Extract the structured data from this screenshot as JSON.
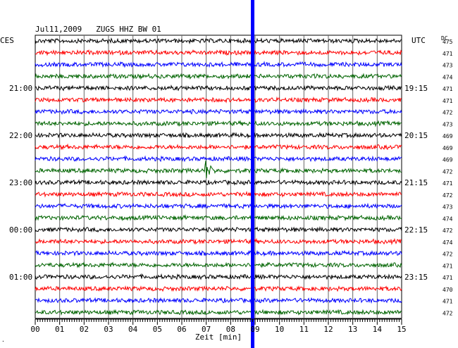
{
  "chart_data": {
    "type": "line",
    "title": "Jul11,2009   ZUGS HHZ BW 01",
    "left_label": "CES",
    "right_label": "UTC",
    "dc_label": "DC",
    "xlabel": "Zeit [min]",
    "xlim": [
      0,
      15
    ],
    "x_ticks": [
      "00",
      "01",
      "02",
      "03",
      "04",
      "05",
      "06",
      "07",
      "08",
      "09",
      "10",
      "11",
      "12",
      "13",
      "14",
      "15"
    ],
    "left_time_labels": [
      "21:00",
      "22:00",
      "23:00",
      "00:00",
      "01:00"
    ],
    "right_time_labels": [
      "19:15",
      "20:15",
      "21:15",
      "22:15",
      "23:15"
    ],
    "time_label_traces": [
      4,
      8,
      12,
      16,
      20
    ],
    "trace_colors": [
      "#000000",
      "#ff0000",
      "#0000ff",
      "#006400"
    ],
    "dc_values": [
      475,
      471,
      473,
      474,
      471,
      471,
      472,
      473,
      469,
      469,
      469,
      472,
      471,
      472,
      473,
      474,
      472,
      474,
      472,
      471,
      471,
      470,
      471,
      472
    ],
    "event": {
      "trace": 11,
      "minute": 7.0,
      "amplitude": "large"
    },
    "marker": {
      "minute": 8.9,
      "color": "#0000ff"
    }
  }
}
